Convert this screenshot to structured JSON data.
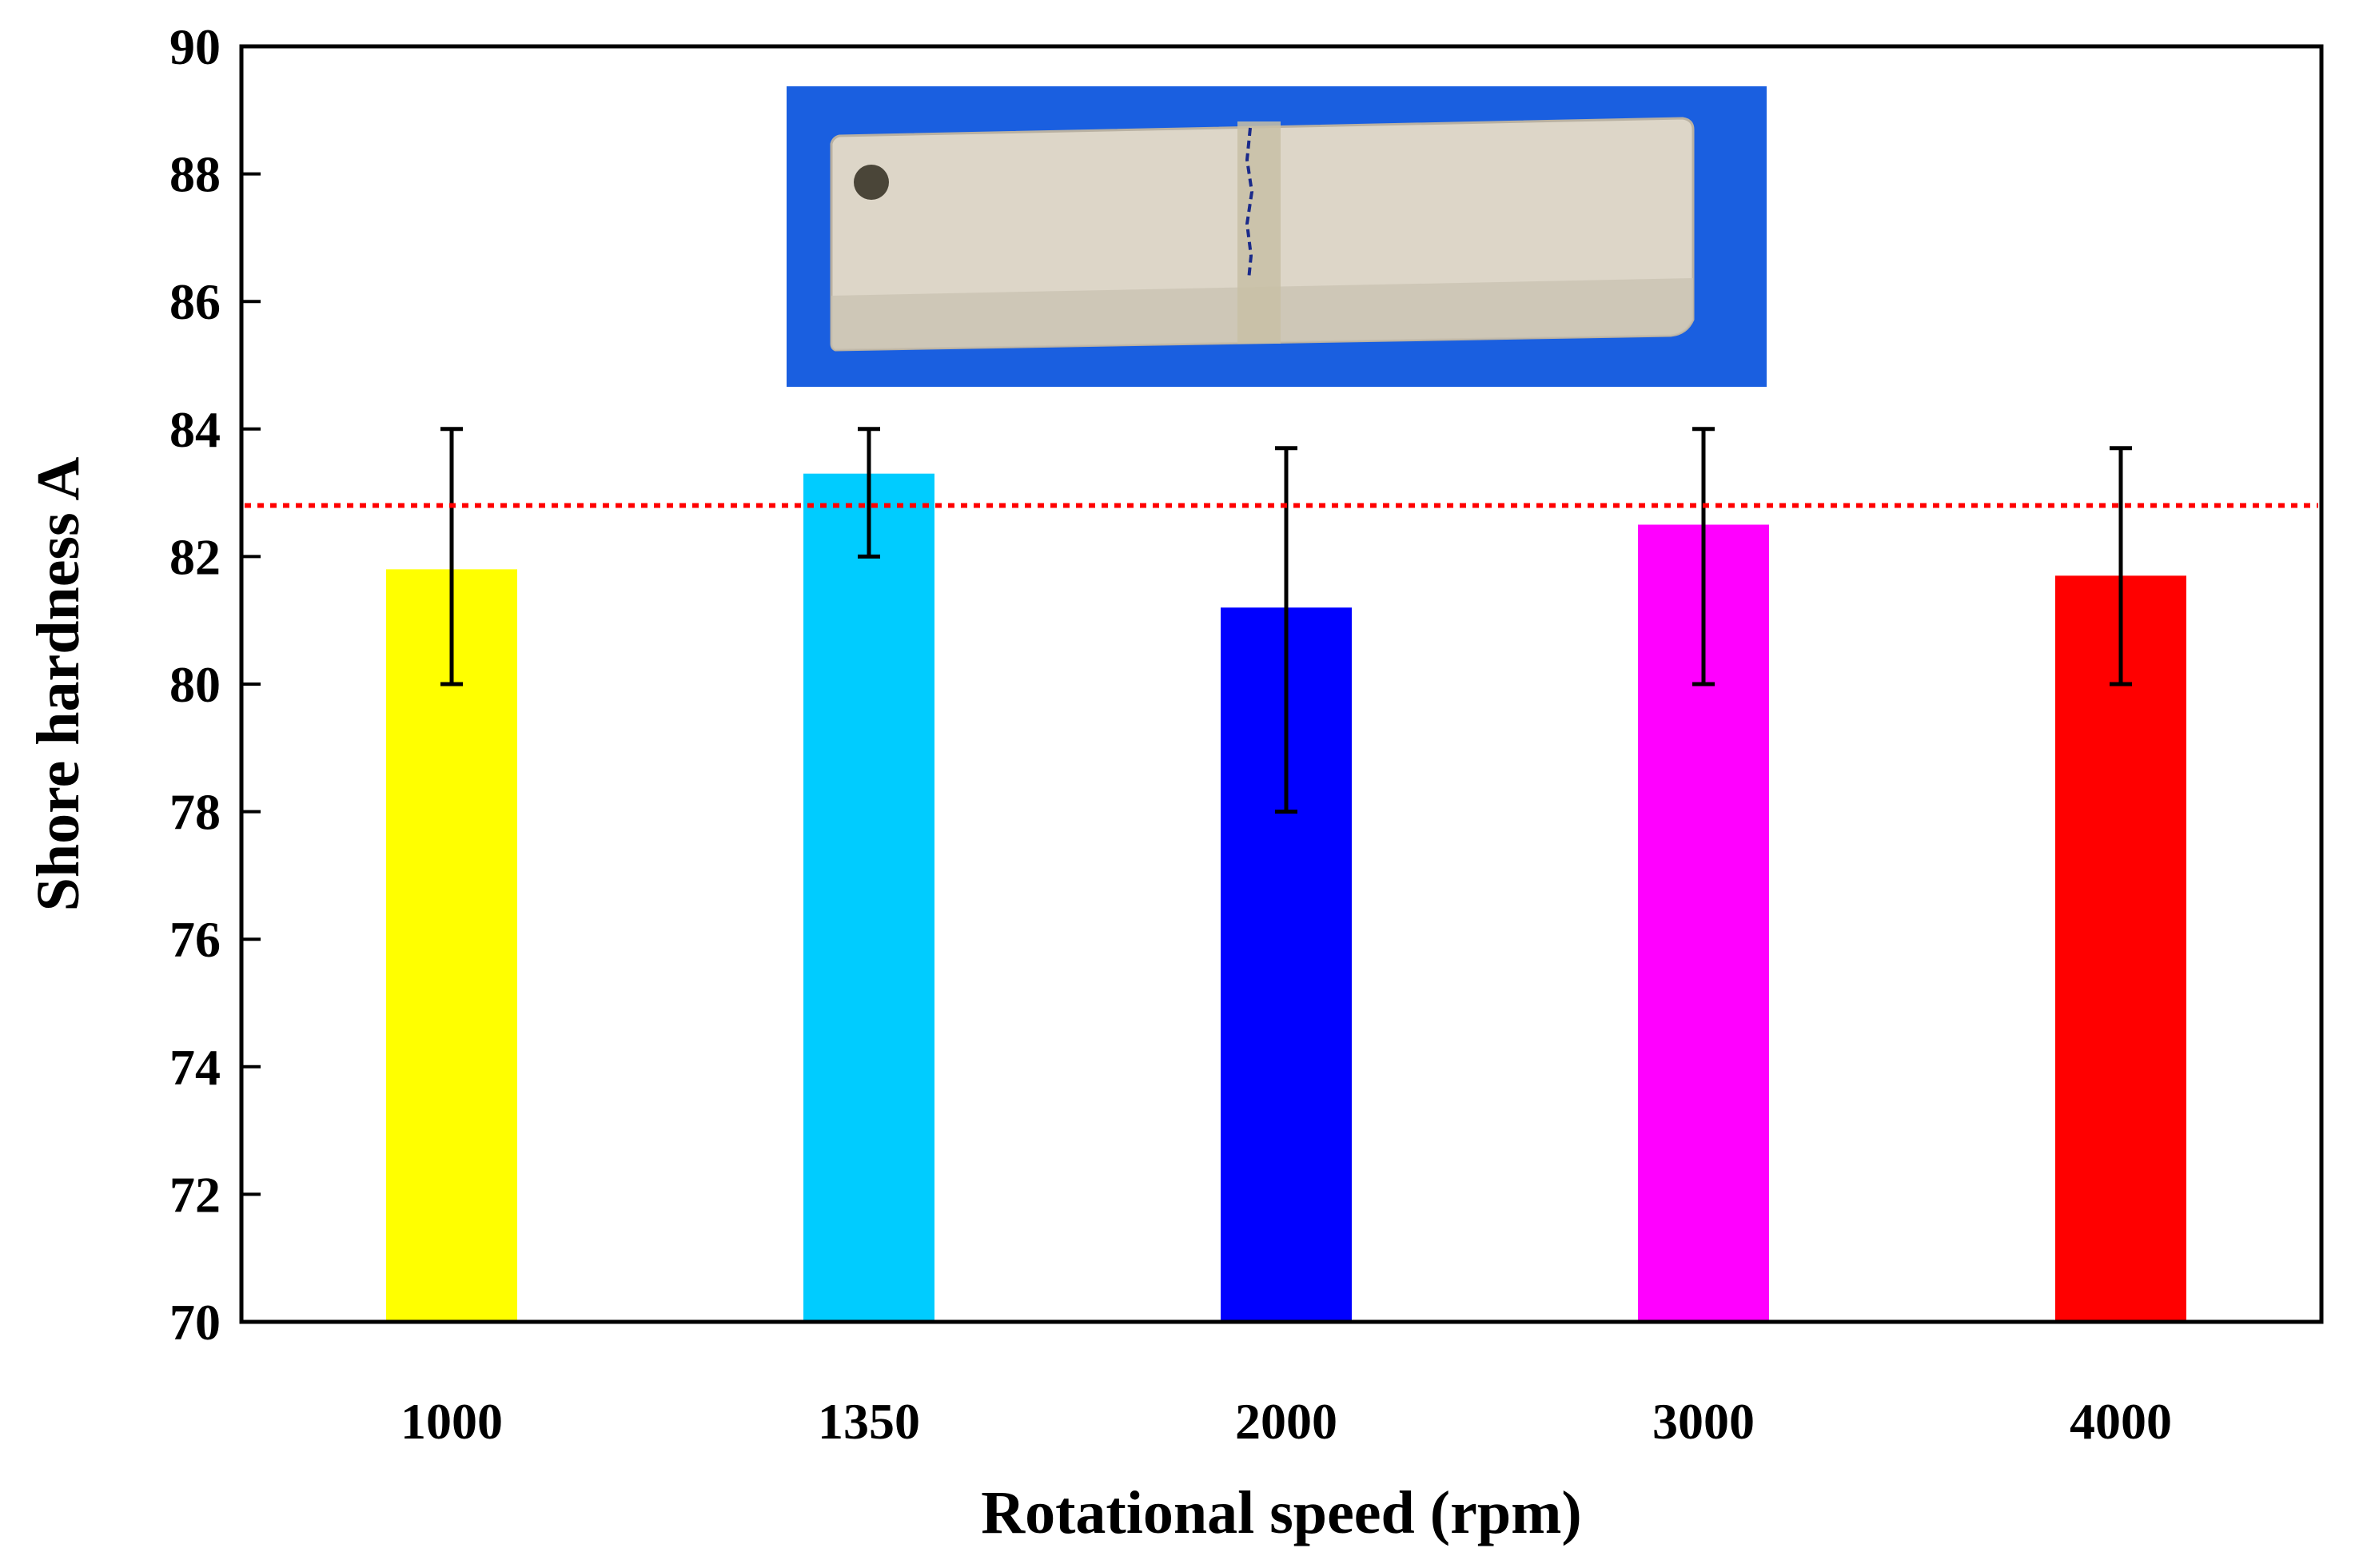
{
  "chart_data": {
    "type": "bar",
    "title": "",
    "xlabel": "Rotational speed (rpm)",
    "ylabel": "Shore hardness A",
    "ylim": [
      70,
      90
    ],
    "yticks": [
      70,
      72,
      74,
      76,
      78,
      80,
      82,
      84,
      86,
      88,
      90
    ],
    "grid": false,
    "legend": "none",
    "categories": [
      "1000",
      "1350",
      "2000",
      "3000",
      "4000"
    ],
    "values": [
      81.8,
      83.3,
      81.2,
      82.5,
      81.7
    ],
    "error_low": [
      80.0,
      82.0,
      78.0,
      80.0,
      80.0
    ],
    "error_high": [
      84.0,
      84.0,
      83.7,
      84.0,
      83.7
    ],
    "bar_colors": [
      "#ffff00",
      "#00ccff",
      "#0000ff",
      "#ff00ff",
      "#ff0000"
    ],
    "reference_line": {
      "value": 82.8,
      "color": "#ff0000",
      "style": "dotted"
    },
    "inset": {
      "description": "photo",
      "background_color": "#1a5fe0",
      "specimen_color": "#ddd6c8",
      "weld_color": "#c8bfa6",
      "marker_color": "#1a2a8a"
    }
  }
}
